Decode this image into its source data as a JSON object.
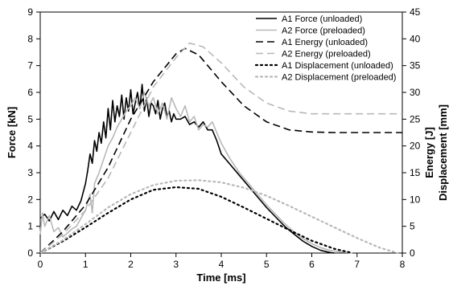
{
  "chart_data": {
    "type": "line",
    "xlabel": "Time [ms]",
    "ylabel_left": "Force [kN]",
    "ylabel_right": [
      "Energy [J]",
      "Displacement [mm]"
    ],
    "xlim": [
      0,
      8
    ],
    "ylim_left": [
      0,
      9
    ],
    "ylim_right": [
      0,
      45
    ],
    "x_ticks": [
      "0",
      "1",
      "2",
      "3",
      "4",
      "5",
      "6",
      "7",
      "8"
    ],
    "y_left_ticks": [
      "0",
      "1",
      "2",
      "3",
      "4",
      "5",
      "6",
      "7",
      "8",
      "9"
    ],
    "y_right_ticks": [
      "0",
      "5",
      "10",
      "15",
      "20",
      "25",
      "30",
      "35",
      "40",
      "45"
    ],
    "grid": false,
    "legend_position": "top-right",
    "series": [
      {
        "name": "A1 Force (unloaded)",
        "axis": "left",
        "color": "#000000",
        "dash": "solid",
        "x": [
          0,
          0.1,
          0.2,
          0.3,
          0.4,
          0.5,
          0.6,
          0.7,
          0.8,
          0.9,
          1.0,
          1.05,
          1.1,
          1.15,
          1.2,
          1.25,
          1.3,
          1.35,
          1.4,
          1.45,
          1.5,
          1.55,
          1.6,
          1.65,
          1.7,
          1.75,
          1.8,
          1.85,
          1.9,
          1.95,
          2.0,
          2.05,
          2.1,
          2.15,
          2.2,
          2.25,
          2.3,
          2.35,
          2.4,
          2.45,
          2.5,
          2.55,
          2.6,
          2.65,
          2.7,
          2.75,
          2.8,
          2.85,
          2.9,
          2.95,
          3.0,
          3.1,
          3.2,
          3.3,
          3.4,
          3.5,
          3.6,
          3.7,
          3.8,
          3.9,
          4.0,
          4.2,
          4.4,
          4.6,
          4.8,
          5.0,
          5.2,
          5.4,
          5.6,
          5.8,
          6.0,
          6.2,
          6.4,
          6.5
        ],
        "y": [
          1.3,
          1.45,
          1.2,
          1.55,
          1.25,
          1.6,
          1.4,
          1.75,
          1.6,
          1.95,
          2.6,
          3.1,
          3.7,
          3.35,
          4.2,
          3.8,
          4.5,
          4.1,
          4.9,
          4.3,
          5.4,
          4.6,
          5.7,
          4.9,
          5.5,
          5.1,
          5.9,
          5.0,
          5.8,
          5.3,
          6.1,
          5.2,
          5.6,
          6.0,
          5.4,
          6.3,
          5.3,
          5.8,
          5.1,
          5.6,
          5.5,
          5.2,
          5.7,
          5.0,
          5.4,
          5.6,
          5.1,
          5.3,
          4.9,
          5.2,
          5.0,
          5.0,
          5.1,
          4.8,
          4.9,
          4.7,
          4.9,
          4.6,
          4.6,
          4.2,
          3.7,
          3.3,
          2.9,
          2.5,
          2.1,
          1.7,
          1.35,
          1.0,
          0.72,
          0.45,
          0.25,
          0.1,
          0.02,
          0.0
        ]
      },
      {
        "name": "A2 Force (preloaded)",
        "axis": "left",
        "color": "#b8b8b8",
        "dash": "solid",
        "x": [
          0,
          0.05,
          0.1,
          0.2,
          0.3,
          0.4,
          0.5,
          0.6,
          0.7,
          0.8,
          0.9,
          1.0,
          1.1,
          1.15,
          1.2,
          1.3,
          1.4,
          1.5,
          1.6,
          1.7,
          1.8,
          1.9,
          2.0,
          2.1,
          2.2,
          2.3,
          2.4,
          2.5,
          2.6,
          2.7,
          2.8,
          2.9,
          3.0,
          3.1,
          3.2,
          3.3,
          3.4,
          3.5,
          3.6,
          3.7,
          3.8,
          3.9,
          4.0,
          4.2,
          4.4,
          4.6,
          4.8,
          5.0,
          5.2,
          5.4,
          5.6,
          5.8,
          6.0,
          6.2,
          6.4,
          6.6,
          6.8,
          6.9
        ],
        "y": [
          0.7,
          1.5,
          1.0,
          1.4,
          0.8,
          0.95,
          0.6,
          0.75,
          0.9,
          1.0,
          1.3,
          1.6,
          2.2,
          1.5,
          2.6,
          3.0,
          3.5,
          4.0,
          4.3,
          4.7,
          5.0,
          5.3,
          5.5,
          5.8,
          5.4,
          6.0,
          5.5,
          5.8,
          5.2,
          5.6,
          5.0,
          5.8,
          5.4,
          5.1,
          5.5,
          4.9,
          5.1,
          4.6,
          4.8,
          4.7,
          4.9,
          4.5,
          4.1,
          3.5,
          3.0,
          2.6,
          2.2,
          1.8,
          1.45,
          1.1,
          0.8,
          0.55,
          0.35,
          0.2,
          0.1,
          0.05,
          0.02,
          0.0
        ]
      },
      {
        "name": "A1 Energy (unloaded)",
        "axis": "right",
        "color": "#000000",
        "dash": "dashed",
        "x": [
          0,
          0.5,
          1.0,
          1.5,
          2.0,
          2.5,
          3.0,
          3.2,
          3.5,
          4.0,
          4.5,
          5.0,
          5.5,
          6.0,
          6.5,
          7.0,
          7.5,
          8.0
        ],
        "y": [
          0,
          4,
          9,
          16,
          25,
          32,
          37.2,
          38.2,
          37.0,
          32.0,
          27.5,
          24.5,
          23.0,
          22.6,
          22.5,
          22.5,
          22.5,
          22.5
        ]
      },
      {
        "name": "A2 Energy (preloaded)",
        "axis": "right",
        "color": "#b8b8b8",
        "dash": "dashed",
        "x": [
          0,
          0.5,
          1.0,
          1.5,
          2.0,
          2.5,
          3.0,
          3.3,
          3.6,
          4.0,
          4.5,
          5.0,
          5.5,
          6.0,
          6.5,
          7.0,
          7.5,
          8.0
        ],
        "y": [
          0,
          3.5,
          8,
          14,
          22.5,
          31,
          36.5,
          39.2,
          38.5,
          35.5,
          31.0,
          28.0,
          26.5,
          26.0,
          26.0,
          26.0,
          26.0,
          26.0
        ]
      },
      {
        "name": "A1 Displacement (unloaded)",
        "axis": "right",
        "color": "#000000",
        "dash": "dotted",
        "x": [
          0,
          0.5,
          1.0,
          1.5,
          2.0,
          2.5,
          3.0,
          3.5,
          4.0,
          4.5,
          5.0,
          5.5,
          6.0,
          6.5,
          6.9
        ],
        "y": [
          0,
          2.2,
          4.8,
          7.5,
          10.0,
          11.8,
          12.3,
          12.0,
          10.5,
          8.5,
          6.4,
          4.3,
          2.3,
          0.8,
          0.0
        ]
      },
      {
        "name": "A2 Displacement (preloaded)",
        "axis": "right",
        "color": "#b8b8b8",
        "dash": "dotted",
        "x": [
          0,
          0.5,
          1.0,
          1.5,
          2.0,
          2.5,
          3.0,
          3.5,
          4.0,
          4.5,
          5.0,
          5.5,
          6.0,
          6.5,
          7.0,
          7.5,
          7.9
        ],
        "y": [
          0,
          2.4,
          5.4,
          8.5,
          11.0,
          12.7,
          13.5,
          13.6,
          13.2,
          12.2,
          10.7,
          8.8,
          6.8,
          4.8,
          2.8,
          1.0,
          0.0
        ]
      }
    ]
  }
}
